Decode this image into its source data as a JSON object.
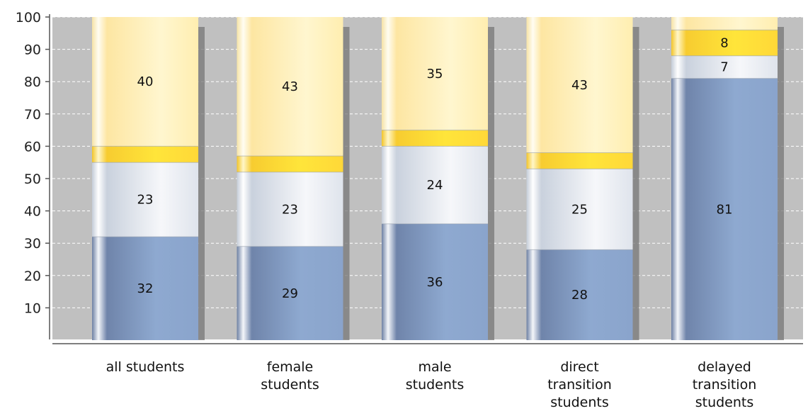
{
  "chart_data": {
    "type": "bar",
    "stacked": true,
    "categories": [
      [
        "all students"
      ],
      [
        "female",
        "students"
      ],
      [
        "male",
        "students"
      ],
      [
        "direct",
        "transition",
        "students"
      ],
      [
        "delayed",
        "transition",
        "students"
      ]
    ],
    "series": [
      {
        "values": [
          32,
          29,
          36,
          28,
          81
        ],
        "labels": [
          "32",
          "29",
          "36",
          "28",
          "81"
        ]
      },
      {
        "values": [
          23,
          23,
          24,
          25,
          7
        ],
        "labels": [
          "23",
          "23",
          "24",
          "25",
          "7"
        ]
      },
      {
        "values": [
          5,
          5,
          5,
          5,
          8
        ],
        "labels": [
          "",
          "",
          "",
          "",
          "8"
        ]
      },
      {
        "values": [
          40,
          43,
          35,
          43,
          4
        ],
        "labels": [
          "40",
          "43",
          "35",
          "43",
          ""
        ]
      }
    ],
    "yticks": [
      10,
      20,
      30,
      40,
      50,
      60,
      70,
      80,
      90,
      100
    ],
    "ylim": [
      0,
      100
    ],
    "grid": true,
    "colors": {
      "series": [
        "#8ea9d0",
        "#e6ebf3",
        "#ffd940",
        "#ffeeb0"
      ],
      "plot_background": "#c0c0c0",
      "gridline": "#ffffff"
    }
  }
}
